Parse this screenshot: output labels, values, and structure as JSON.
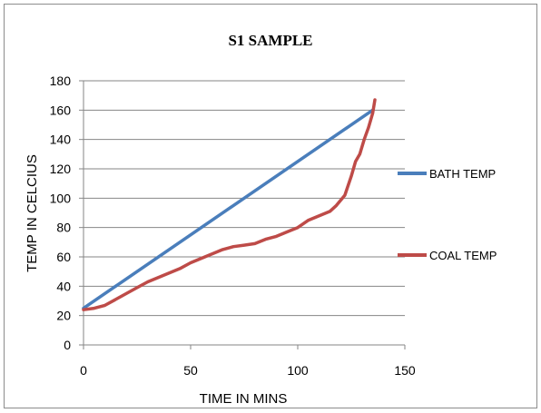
{
  "chart_data": {
    "type": "line",
    "title": "S1 SAMPLE",
    "xlabel": "TIME IN MINS",
    "ylabel": "TEMP IN CELCIUS",
    "xlim": [
      0,
      150
    ],
    "ylim": [
      0,
      180
    ],
    "x_ticks": [
      0,
      50,
      100,
      150
    ],
    "y_ticks": [
      0,
      20,
      40,
      60,
      80,
      100,
      120,
      140,
      160,
      180
    ],
    "grid": "horizontal",
    "legend_position": "right",
    "series": [
      {
        "name": "BATH TEMP",
        "color": "#4a7ebb",
        "points": [
          [
            0,
            25
          ],
          [
            135,
            160
          ]
        ]
      },
      {
        "name": "COAL TEMP",
        "color": "#be4b48",
        "points": [
          [
            0,
            24
          ],
          [
            5,
            25
          ],
          [
            10,
            27
          ],
          [
            15,
            31
          ],
          [
            20,
            35
          ],
          [
            25,
            39
          ],
          [
            30,
            43
          ],
          [
            35,
            46
          ],
          [
            40,
            49
          ],
          [
            45,
            52
          ],
          [
            50,
            56
          ],
          [
            55,
            59
          ],
          [
            60,
            62
          ],
          [
            65,
            65
          ],
          [
            70,
            67
          ],
          [
            75,
            68
          ],
          [
            80,
            69
          ],
          [
            85,
            72
          ],
          [
            90,
            74
          ],
          [
            95,
            77
          ],
          [
            100,
            80
          ],
          [
            105,
            85
          ],
          [
            110,
            88
          ],
          [
            115,
            91
          ],
          [
            118,
            95
          ],
          [
            122,
            102
          ],
          [
            125,
            115
          ],
          [
            127,
            125
          ],
          [
            129,
            130
          ],
          [
            131,
            140
          ],
          [
            133,
            148
          ],
          [
            135,
            158
          ],
          [
            136,
            167
          ]
        ]
      }
    ]
  }
}
